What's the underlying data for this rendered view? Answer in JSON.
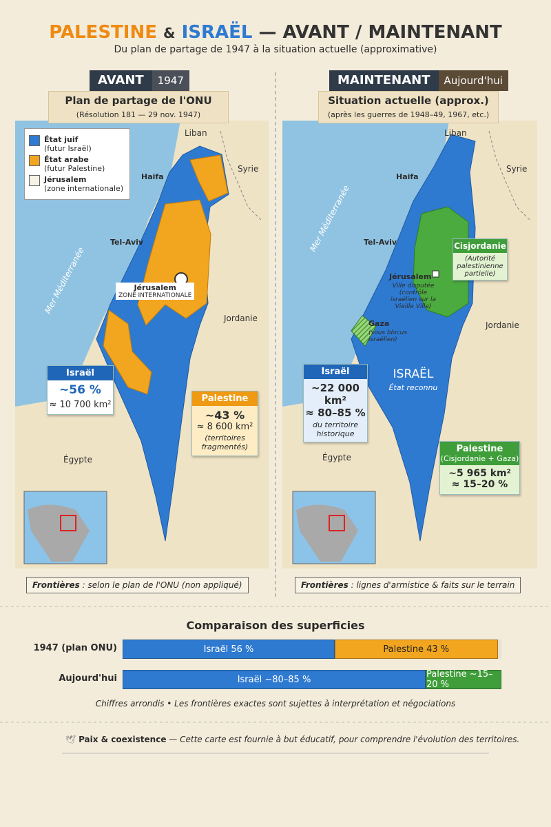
{
  "header": {
    "title_a": "PALESTINE",
    "title_amp": "&",
    "title_b": "ISRAËL",
    "title_c": "— AVANT / MAINTENANT",
    "subtitle": "Du plan de partage de 1947 à la situation actuelle (approximative)"
  },
  "left": {
    "tab": "AVANT",
    "tab_year": "1947",
    "caption_title": "Plan de partage de l'ONU",
    "caption_sub": "(Résolution 181 — 29 nov. 1947)",
    "legend": [
      {
        "name": "État juif",
        "sub": "(futur Israël)",
        "color": "#2f7ad1"
      },
      {
        "name": "État arabe",
        "sub": "(futur Palestine)",
        "color": "#f2a51f"
      },
      {
        "name": "Jérusalem",
        "sub": "(zone internationale)",
        "color": "#f7f2e6"
      }
    ],
    "places": {
      "liban": "Liban",
      "syrie": "Syrie",
      "haifa": "Haifa",
      "telaviv": "Tel-Aviv",
      "sea": "Mer Méditerranée",
      "jerusalem": "Jérusalem",
      "zone": "ZONE INTERNATIONALE",
      "jordanie": "Jordanie",
      "egypte": "Égypte"
    },
    "israel": {
      "title": "Israël",
      "pct": "~56 %",
      "area": "≈ 10 700 km²"
    },
    "palestine": {
      "title": "Palestine",
      "pct": "~43 %",
      "area": "≈ 8 600 km²",
      "note": "(territoires fragmentés)"
    },
    "footer_bold": "Frontières",
    "footer": " : selon le plan de l'ONU (non appliqué)"
  },
  "right": {
    "tab": "MAINTENANT",
    "tab_year": "Aujourd'hui",
    "caption_title": "Situation actuelle (approx.)",
    "caption_sub": "(après les guerres de 1948–49, 1967, etc.)",
    "places": {
      "liban": "Liban",
      "syrie": "Syrie",
      "haifa": "Haifa",
      "telaviv": "Tel-Aviv",
      "sea": "Mer Méditerranée",
      "jerusalem": "Jérusalem",
      "jerusalem_note": "Ville disputée (contrôle israélien sur la Vieille Ville)",
      "gaza": "Gaza",
      "gaza_note": "(sous blocus israélien)",
      "jordanie": "Jordanie",
      "egypte": "Égypte",
      "israel": "ISRAËL",
      "israel_note": "État reconnu"
    },
    "cisjordanie": {
      "title": "Cisjordanie",
      "note": "(Autorité palestinienne partielle)"
    },
    "israel": {
      "title": "Israël",
      "area": "~22 000 km²",
      "pct": "≈ 80–85 %",
      "note": "du territoire historique"
    },
    "palestine": {
      "title": "Palestine",
      "sub": "(Cisjordanie + Gaza)",
      "area": "~5 965 km²",
      "pct": "≈ 15–20 %"
    },
    "footer_bold": "Frontières",
    "footer": " : lignes d'armistice & faits sur le terrain"
  },
  "comparison": {
    "title": "Comparaison des superficies",
    "rows": [
      {
        "label": "1947 (plan ONU)",
        "segments": [
          {
            "label": "Israël 56 %",
            "value": 56,
            "color": "#2f7ad1"
          },
          {
            "label": "Palestine 43 %",
            "value": 43,
            "color": "#f2a51f"
          }
        ]
      },
      {
        "label": "Aujourd'hui",
        "segments": [
          {
            "label": "Israël ~80–85 %",
            "value": 80,
            "color": "#2f7ad1"
          },
          {
            "label": "Palestine ~15–20 %",
            "value": 20,
            "color": "#3f9e3a"
          }
        ]
      }
    ],
    "note": "Chiffres arrondis • Les frontières exactes sont sujettes à interprétation et négociations"
  },
  "footer": {
    "bold": "Paix & coexistence",
    "text": "— Cette carte est fournie à but éducatif, pour comprendre l'évolution des territoires."
  }
}
